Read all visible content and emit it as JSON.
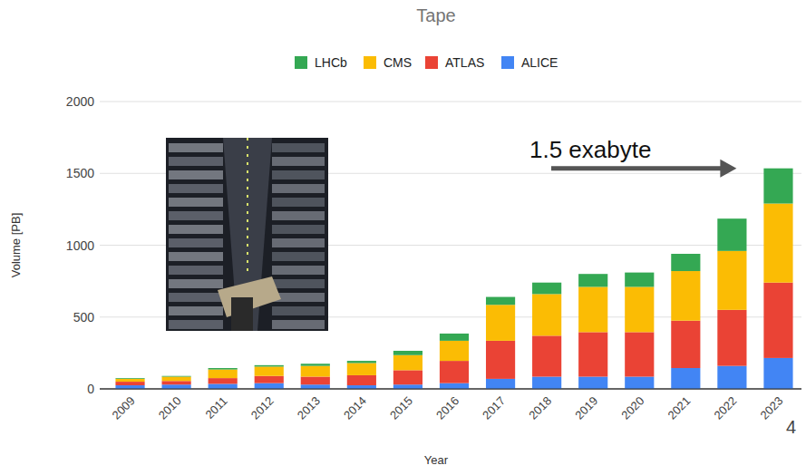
{
  "chart_data": {
    "type": "bar",
    "title": "Tape",
    "stacked": true,
    "grid": true,
    "legend": "top",
    "x_label": "Year",
    "y_label": "Volume [PB]",
    "annotation": "1.5 exabyte",
    "page_number": "4",
    "categories": [
      "2009",
      "2010",
      "2011",
      "2012",
      "2013",
      "2014",
      "2015",
      "2016",
      "2017",
      "2018",
      "2019",
      "2020",
      "2021",
      "2022",
      "2023"
    ],
    "series": [
      {
        "name": "ALICE",
        "color": "#4285f4",
        "values": [
          25,
          30,
          35,
          40,
          30,
          25,
          30,
          40,
          70,
          85,
          85,
          85,
          145,
          160,
          215
        ]
      },
      {
        "name": "ATLAS",
        "color": "#ea4335",
        "values": [
          25,
          25,
          40,
          50,
          55,
          70,
          100,
          155,
          265,
          285,
          310,
          310,
          330,
          390,
          525
        ]
      },
      {
        "name": "CMS",
        "color": "#fbbc04",
        "values": [
          20,
          30,
          60,
          65,
          75,
          85,
          105,
          140,
          250,
          290,
          315,
          315,
          345,
          410,
          550
        ]
      },
      {
        "name": "LHCb",
        "color": "#34a853",
        "values": [
          5,
          5,
          10,
          10,
          15,
          15,
          30,
          50,
          55,
          80,
          90,
          100,
          120,
          225,
          245
        ]
      }
    ],
    "ylim": [
      0,
      2000
    ],
    "yticks": [
      0,
      500,
      1000,
      1500,
      2000
    ]
  }
}
